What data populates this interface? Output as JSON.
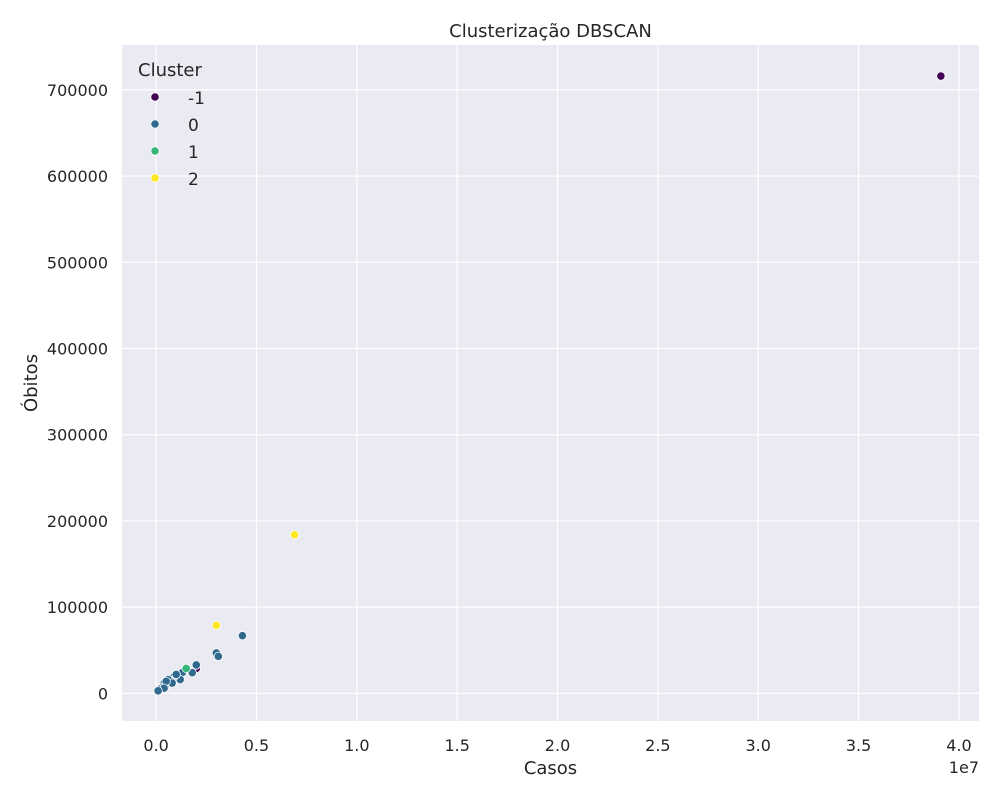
{
  "chart_data": {
    "type": "scatter",
    "title": "Clusterização DBSCAN",
    "xlabel": "Casos",
    "ylabel": "Óbitos",
    "x_offset_label": "1e7",
    "xlim": [
      -0.17,
      4.1
    ],
    "ylim": [
      -32000,
      752000
    ],
    "x_ticks": [
      0.0,
      0.5,
      1.0,
      1.5,
      2.0,
      2.5,
      3.0,
      3.5,
      4.0
    ],
    "x_tick_labels": [
      "0.0",
      "0.5",
      "1.0",
      "1.5",
      "2.0",
      "2.5",
      "3.0",
      "3.5",
      "4.0"
    ],
    "y_ticks": [
      0,
      100000,
      200000,
      300000,
      400000,
      500000,
      600000,
      700000
    ],
    "y_tick_labels": [
      "0",
      "100000",
      "200000",
      "300000",
      "400000",
      "500000",
      "600000",
      "700000"
    ],
    "grid": true,
    "background": "#eaeaf2",
    "legend": {
      "title": "Cluster",
      "placement": "top-left"
    },
    "series": [
      {
        "name": "-1",
        "color": "#440154",
        "x": [
          3.91,
          0.2
        ],
        "y": [
          716000,
          29000
        ]
      },
      {
        "name": "0",
        "color": "#31688e",
        "x": [
          0.43,
          0.3,
          0.31,
          0.2,
          0.18,
          0.13,
          0.12,
          0.09,
          0.08,
          0.07,
          0.06,
          0.05,
          0.05,
          0.06,
          0.04,
          0.03,
          0.02,
          0.04,
          0.03,
          0.08,
          0.1,
          0.05,
          0.02,
          0.04,
          0.01
        ],
        "y": [
          67000,
          47000,
          43000,
          33000,
          24000,
          24000,
          16000,
          20000,
          14000,
          15000,
          12000,
          13000,
          10000,
          16000,
          9000,
          8000,
          6000,
          12000,
          7000,
          12000,
          22000,
          14000,
          5000,
          6000,
          3000
        ]
      },
      {
        "name": "1",
        "color": "#35b779",
        "x": [
          0.15
        ],
        "y": [
          29000
        ]
      },
      {
        "name": "2",
        "color": "#fde725",
        "x": [
          0.69,
          0.3
        ],
        "y": [
          184000,
          79000
        ]
      }
    ]
  }
}
